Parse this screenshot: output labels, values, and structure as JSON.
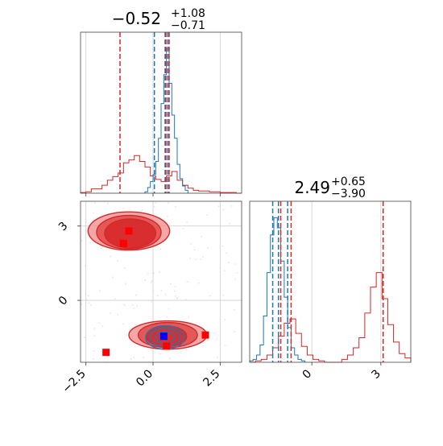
{
  "chart_data": {
    "type": "corner",
    "colors": {
      "red": "#d62728",
      "blue": "#1f77b4",
      "grid": "#cccccc",
      "marker_red": "#ff0000",
      "marker_blue": "#0000ff"
    },
    "grid": true,
    "panels": {
      "top_hist": {
        "title": {
          "main": "−0.52",
          "sup": "+1.08",
          "sub": "−0.71"
        },
        "xlim": [
          -2.7,
          3.3
        ],
        "vlines_red": [
          -1.23,
          0.48,
          0.6
        ],
        "vlines_blue": [
          0.05,
          0.45,
          0.55
        ],
        "red_hist": {
          "bins": [
            -2.7,
            -2.5,
            -2.3,
            -2.1,
            -1.9,
            -1.7,
            -1.5,
            -1.3,
            -1.1,
            -0.9,
            -0.7,
            -0.5,
            -0.3,
            -0.1,
            0.1,
            0.3,
            0.5,
            0.7,
            0.9,
            1.1,
            1.3,
            1.5,
            1.7,
            1.9,
            2.1,
            2.3,
            2.5,
            2.7,
            2.9,
            3.1,
            3.3
          ],
          "counts": [
            0.01,
            0.02,
            0.06,
            0.06,
            0.11,
            0.18,
            0.23,
            0.28,
            0.42,
            0.46,
            0.52,
            0.44,
            0.36,
            0.24,
            0.19,
            0.16,
            0.24,
            0.3,
            0.18,
            0.11,
            0.07,
            0.04,
            0.03,
            0.03,
            0.02,
            0.02,
            0.01,
            0.01,
            0.01,
            0.0
          ]
        },
        "blue_hist": {
          "bins": [
            -0.3,
            -0.2,
            -0.1,
            0.0,
            0.1,
            0.2,
            0.3,
            0.4,
            0.5,
            0.6,
            0.7,
            0.8,
            0.9,
            1.0,
            1.1,
            1.2,
            1.3
          ],
          "counts": [
            0.01,
            0.04,
            0.08,
            0.13,
            0.22,
            0.38,
            0.62,
            0.82,
            1.0,
            0.76,
            0.54,
            0.38,
            0.2,
            0.1,
            0.05,
            0.02
          ]
        },
        "ylim": [
          0,
          1.08
        ],
        "xticks": [
          -2.5,
          0.0,
          2.5
        ]
      },
      "scatter": {
        "xlim": [
          -2.7,
          3.3
        ],
        "ylim": [
          -2.5,
          4.0
        ],
        "xticks": [
          -2.5,
          0.0,
          2.5
        ],
        "xtick_labels": [
          "−2.5",
          "0.0",
          "2.5"
        ],
        "yticks": [
          3,
          0
        ],
        "ytick_labels": [
          "3",
          "0"
        ],
        "red_markers": [
          [
            -0.9,
            2.8
          ],
          [
            -1.1,
            2.3
          ],
          [
            1.95,
            -1.4
          ],
          [
            -1.75,
            -2.1
          ],
          [
            0.5,
            -1.85
          ]
        ],
        "blue_markers": [
          [
            0.4,
            -1.45
          ]
        ],
        "red_contours": [
          {
            "cx": -0.9,
            "cy": 2.8,
            "rx": 1.52,
            "ry": 1.35
          },
          {
            "cx": -0.9,
            "cy": 2.75,
            "rx": 1.2,
            "ry": 1.1
          },
          {
            "cx": -0.85,
            "cy": 2.7,
            "rx": 0.95,
            "ry": 0.85
          },
          {
            "cx": 0.55,
            "cy": -1.4,
            "rx": 1.45,
            "ry": 0.95
          },
          {
            "cx": 0.55,
            "cy": -1.4,
            "rx": 1.1,
            "ry": 0.75
          },
          {
            "cx": 0.5,
            "cy": -1.45,
            "rx": 0.75,
            "ry": 0.5
          }
        ],
        "blue_contours": [
          {
            "cx": 0.45,
            "cy": -1.5,
            "rx": 0.72,
            "ry": 0.95
          },
          {
            "cx": 0.45,
            "cy": -1.5,
            "rx": 0.55,
            "ry": 0.75
          },
          {
            "cx": 0.45,
            "cy": -1.5,
            "rx": 0.35,
            "ry": 0.45
          }
        ]
      },
      "right_hist": {
        "title": {
          "main": "2.49",
          "sup": "+0.65",
          "sub": "−3.90"
        },
        "xlim": [
          -2.7,
          4.3
        ],
        "xticks": [
          0,
          3
        ],
        "xtick_labels": [
          "0",
          "3"
        ],
        "vlines_red": [
          -1.35,
          -0.9,
          3.1
        ],
        "vlines_blue": [
          -1.7,
          -1.45,
          -1.05
        ],
        "red_hist": {
          "bins": [
            -2.7,
            -2.45,
            -2.2,
            -1.95,
            -1.7,
            -1.45,
            -1.2,
            -0.95,
            -0.7,
            -0.45,
            -0.2,
            0.05,
            0.3,
            0.55,
            0.8,
            1.05,
            1.3,
            1.55,
            1.8,
            2.05,
            2.3,
            2.55,
            2.8,
            3.05,
            3.3,
            3.55,
            3.8,
            4.05,
            4.3
          ],
          "counts": [
            0.0,
            0.01,
            0.02,
            0.05,
            0.1,
            0.18,
            0.27,
            0.3,
            0.2,
            0.11,
            0.05,
            0.02,
            0.01,
            0.0,
            0.0,
            0.0,
            0.02,
            0.05,
            0.1,
            0.17,
            0.34,
            0.52,
            0.62,
            0.44,
            0.26,
            0.14,
            0.06,
            0.03
          ]
        },
        "blue_hist": {
          "bins": [
            -2.7,
            -2.55,
            -2.4,
            -2.25,
            -2.1,
            -1.95,
            -1.8,
            -1.65,
            -1.5,
            -1.35,
            -1.2,
            -1.05,
            -0.9,
            -0.75,
            -0.6,
            -0.45,
            -0.3
          ],
          "counts": [
            0.01,
            0.02,
            0.05,
            0.12,
            0.32,
            0.62,
            0.88,
            1.0,
            0.93,
            0.7,
            0.45,
            0.24,
            0.1,
            0.05,
            0.02,
            0.01
          ]
        },
        "ylim": [
          0,
          1.08
        ]
      }
    }
  }
}
